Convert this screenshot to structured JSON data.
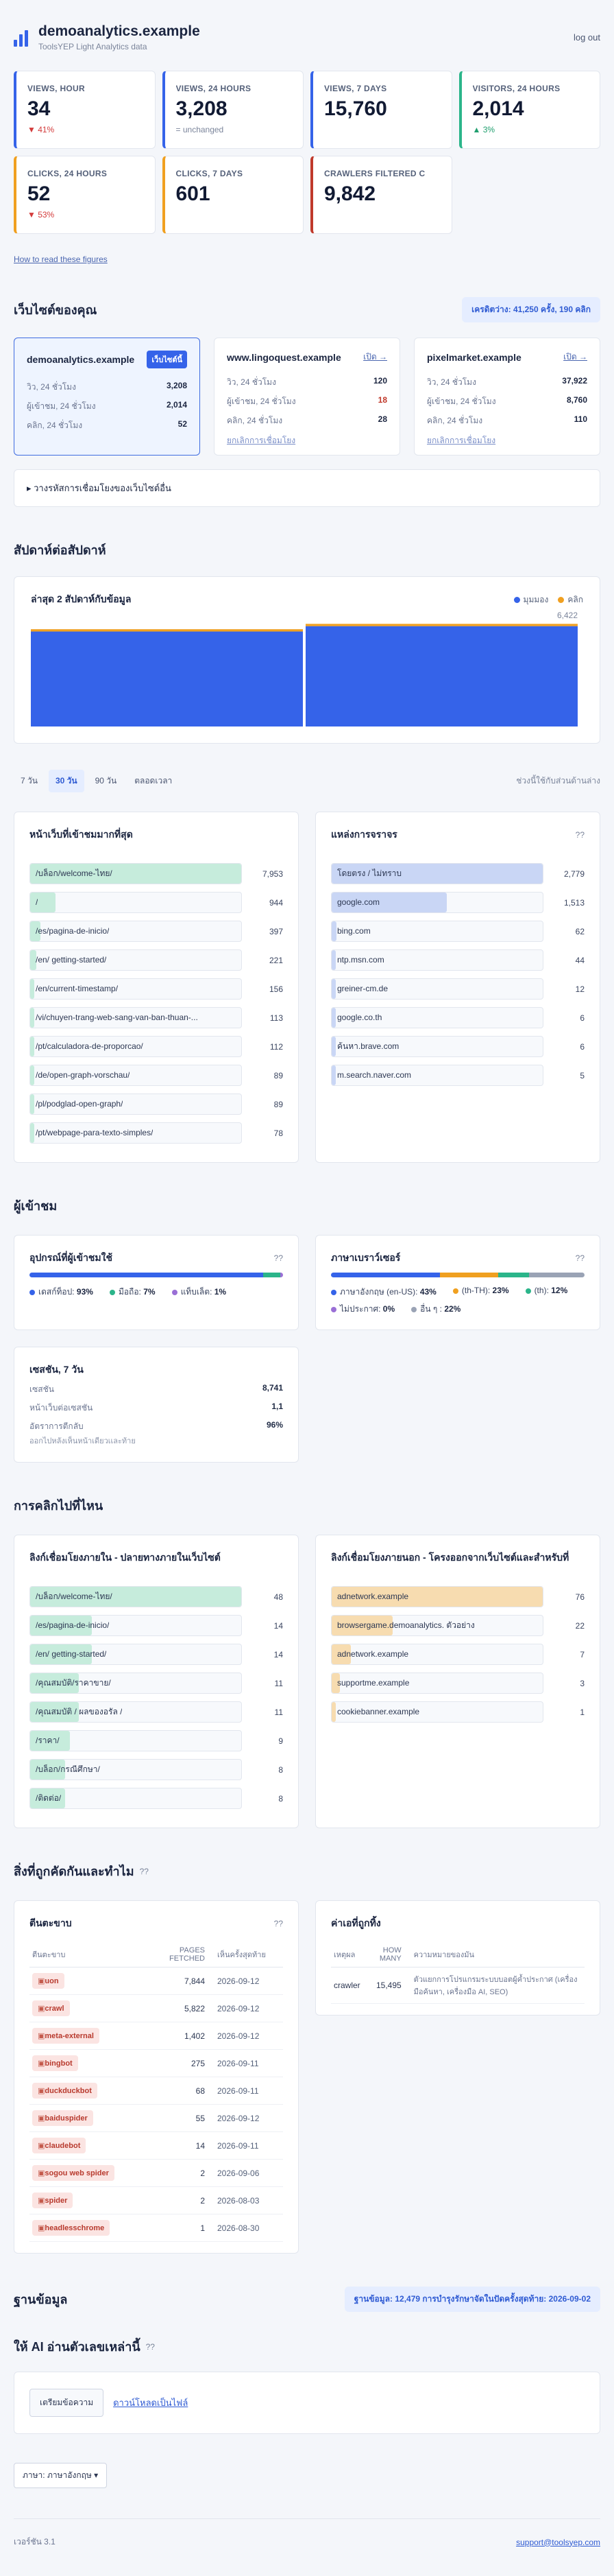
{
  "header": {
    "title": "demoanalytics.example",
    "subtitle": "ToolsYEP Light Analytics data",
    "logout": "log out"
  },
  "kpis": [
    {
      "label": "VIEWS, HOUR",
      "value": "34",
      "delta": "▼ 41%",
      "trend": "down",
      "color": "#3563e9"
    },
    {
      "label": "VIEWS, 24 HOURS",
      "value": "3,208",
      "delta": "= unchanged",
      "trend": "flat",
      "color": "#3563e9"
    },
    {
      "label": "VIEWS, 7 DAYS",
      "value": "15,760",
      "delta": "",
      "trend": "none",
      "color": "#3563e9"
    },
    {
      "label": "VISITORS, 24 HOURS",
      "value": "2,014",
      "delta": "▲ 3%",
      "trend": "up",
      "color": "#2bb58a"
    },
    {
      "label": "CLICKS, 24 HOURS",
      "value": "52",
      "delta": "▼ 53%",
      "trend": "down",
      "color": "#f0a020"
    },
    {
      "label": "CLICKS, 7 DAYS",
      "value": "601",
      "delta": "",
      "trend": "none",
      "color": "#f0a020"
    },
    {
      "label": "CRAWLERS FILTERED C",
      "value": "9,842",
      "delta": "",
      "trend": "none",
      "color": "#c0392b"
    }
  ],
  "how_link": "How to read these figures",
  "sites_section": {
    "title": "เว็บไซต์ของคุณ",
    "pill": "เครดิตว่าง: 41,250 ครั้ง, 190 คลิก",
    "sites": [
      {
        "name": "demoanalytics.example",
        "badge": "เว็บไซต์นี้",
        "active": true,
        "rows": [
          {
            "k": "วิว, 24 ชั่วโมง",
            "v": "3,208"
          },
          {
            "k": "ผู้เข้าชม, 24 ชั่วโมง",
            "v": "2,014"
          },
          {
            "k": "คลิก, 24 ชั่วโมง",
            "v": "52"
          }
        ]
      },
      {
        "name": "www.lingoquest.example",
        "open": "เปิด →",
        "active": false,
        "unlink": "ยกเลิกการเชื่อมโยง",
        "rows": [
          {
            "k": "วิว, 24 ชั่วโมง",
            "v": "120"
          },
          {
            "k": "ผู้เข้าชม, 24 ชั่วโมง",
            "v": "18"
          },
          {
            "k": "คลิก, 24 ชั่วโมง",
            "v": "28"
          }
        ]
      },
      {
        "name": "pixelmarket.example",
        "open": "เปิด →",
        "active": false,
        "unlink": "ยกเลิกการเชื่อมโยง",
        "rows": [
          {
            "k": "วิว, 24 ชั่วโมง",
            "v": "37,922"
          },
          {
            "k": "ผู้เข้าชม, 24 ชั่วโมง",
            "v": "8,760"
          },
          {
            "k": "คลิก, 24 ชั่วโมง",
            "v": "110"
          }
        ]
      }
    ],
    "connect": "▸ วางรหัสการเชื่อมโยงของเว็บไซต์อื่น"
  },
  "weekly": {
    "section_title": "สัปดาห์ต่อสัปดาห์",
    "card_title": "ล่าสุด 2 สัปดาห์กับข้อมูล",
    "legend_views": "มุมมอง",
    "legend_clicks": "คลิก",
    "peak_label": "6,422",
    "color_views": "#3563e9",
    "color_clicks": "#f0a020"
  },
  "chart_data": {
    "type": "bar",
    "categories": [
      "",
      ""
    ],
    "series": [
      {
        "name": "มุมมอง",
        "values": [
          5850,
          6180
        ]
      },
      {
        "name": "คลิก",
        "values": [
          240,
          242
        ]
      }
    ],
    "ylim": [
      0,
      6422
    ]
  },
  "range": {
    "tabs": [
      "7 วัน",
      "30 วัน",
      "90 วัน",
      "ตลอดเวลา"
    ],
    "active": 1,
    "note": "ช่วงนี้ใช้กับส่วนด้านล่าง"
  },
  "pages": {
    "title": "หน้าเว็บที่เข้าชมมากที่สุด",
    "items": [
      {
        "label": "/บล็อก/welcome-ไทย/",
        "value": 7953
      },
      {
        "label": "/",
        "value": 944
      },
      {
        "label": "/es/pagina-de-inicio/",
        "value": 397
      },
      {
        "label": "/en/ getting-started/",
        "value": 221
      },
      {
        "label": "/en/current-timestamp/",
        "value": 156
      },
      {
        "label": "/vi/chuyen-trang-web-sang-van-ban-thuan-...",
        "value": 113
      },
      {
        "label": "/pt/calculadora-de-proporcao/",
        "value": 112
      },
      {
        "label": "/de/open-graph-vorschau/",
        "value": 89
      },
      {
        "label": "/pl/podglad-open-graph/",
        "value": 89
      },
      {
        "label": "/pt/webpage-para-texto-simples/",
        "value": 78
      }
    ]
  },
  "sources": {
    "title": "แหล่งการจราจร",
    "help": "??",
    "items": [
      {
        "label": "โดยตรง / ไม่ทราบ",
        "value": 2779
      },
      {
        "label": "google.com",
        "value": 1513
      },
      {
        "label": "bing.com",
        "value": 62
      },
      {
        "label": "ntp.msn.com",
        "value": 44
      },
      {
        "label": "greiner-cm.de",
        "value": 12
      },
      {
        "label": "google.co.th",
        "value": 6
      },
      {
        "label": "ค้นหา.brave.com",
        "value": 6
      },
      {
        "label": "m.search.naver.com",
        "value": 5
      }
    ]
  },
  "visitors": {
    "section_title": "ผู้เข้าชม",
    "devices": {
      "title": "อุปกรณ์ที่ผู้เข้าชมใช้",
      "help": "??",
      "segments": [
        {
          "label": "เดสก์ท็อป:",
          "pct": 93,
          "display": "93%",
          "color": "#3563e9"
        },
        {
          "label": "มือถือ:",
          "pct": 7,
          "display": "7%",
          "color": "#2bb58a"
        },
        {
          "label": "แท็บเล็ต:",
          "pct": 1,
          "display": "1%",
          "color": "#9a6fd6"
        }
      ]
    },
    "languages": {
      "title": "ภาษาเบราว์เซอร์",
      "help": "??",
      "segments": [
        {
          "label": "ภาษาอังกฤษ (en-US):",
          "pct": 43,
          "display": "43%",
          "color": "#3563e9"
        },
        {
          "label": "(th-TH):",
          "pct": 23,
          "display": "23%",
          "color": "#f0a020"
        },
        {
          "label": "(th):",
          "pct": 12,
          "display": "12%",
          "color": "#2bb58a"
        },
        {
          "label": "ไม่ประกาศ:",
          "pct": 0,
          "display": "0%",
          "color": "#9a6fd6"
        },
        {
          "label": "อื่น ๆ :",
          "pct": 22,
          "display": "22%",
          "color": "#9aa3b5"
        }
      ]
    },
    "sessions": {
      "title": "เซสชัน, 7 วัน",
      "rows": [
        {
          "k": "เซสชัน",
          "v": "8,741"
        },
        {
          "k": "หน้าเว็บต่อเซสชัน",
          "v": "1,1"
        },
        {
          "k": "อัตราการตีกลับ",
          "v": "96%"
        }
      ],
      "note": "ออกไปหลังเห็นหน้าเดียวเเละท้าย"
    }
  },
  "clicks": {
    "section_title": "การคลิกไปที่ไหน",
    "internal": {
      "title": "ลิงก์เชื่อมโยงภายใน - ปลายทางภายในเว็บไซต์",
      "items": [
        {
          "label": "/บล็อก/welcome-ไทย/",
          "value": 48
        },
        {
          "label": "/es/pagina-de-inicio/",
          "value": 14
        },
        {
          "label": "/en/ getting-started/",
          "value": 14
        },
        {
          "label": "/คุณสมบัติ/ราคาขาย/",
          "value": 11
        },
        {
          "label": "/คุณสมบัติ / ผลของอรัล /",
          "value": 11
        },
        {
          "label": "/ราคา/",
          "value": 9
        },
        {
          "label": "/บล็อก/กรณีศึกษา/",
          "value": 8
        },
        {
          "label": "/ติดต่อ/",
          "value": 8
        }
      ]
    },
    "external": {
      "title": "ลิงก์เชื่อมโยงภายนอก - โครงออกจากเว็บไซต์และสำหรับที่",
      "items": [
        {
          "label": "adnetwork.example",
          "value": 76
        },
        {
          "label": "browsergame.demoanalytics. ตัวอย่าง",
          "value": 22
        },
        {
          "label": "adnetwork.example",
          "value": 7
        },
        {
          "label": "supportme.example",
          "value": 3
        },
        {
          "label": "cookiebanner.example",
          "value": 1
        }
      ]
    }
  },
  "bots": {
    "section_title": "สิ่งที่ถูกคัดกันและทำไม",
    "section_help": "??",
    "crawlers": {
      "title": "ตีนตะขาบ",
      "help": "??",
      "col_name": "ตีนตะขาบ",
      "col_pages": "PAGES FETCHED",
      "col_last": "เห็นครั้งสุดท้าย",
      "rows": [
        {
          "name": "uon",
          "pages": "7,844",
          "last": "2026-09-12"
        },
        {
          "name": "crawl",
          "pages": "5,822",
          "last": "2026-09-12"
        },
        {
          "name": "meta-external",
          "pages": "1,402",
          "last": "2026-09-12"
        },
        {
          "name": "bingbot",
          "pages": "275",
          "last": "2026-09-11"
        },
        {
          "name": "duckduckbot",
          "pages": "68",
          "last": "2026-09-11"
        },
        {
          "name": "baiduspider",
          "pages": "55",
          "last": "2026-09-12"
        },
        {
          "name": "claudebot",
          "pages": "14",
          "last": "2026-09-11"
        },
        {
          "name": "sogou web spider",
          "pages": "2",
          "last": "2026-09-06"
        },
        {
          "name": "spider",
          "pages": "2",
          "last": "2026-08-03"
        },
        {
          "name": "headlesschrome",
          "pages": "1",
          "last": "2026-08-30"
        }
      ]
    },
    "blocked": {
      "title": "ค่าเอที่ถูกทิ้ง",
      "col_reason": "เหตุผล",
      "col_count": "HOW MANY",
      "col_meaning": "ความหมายของมัน",
      "rows": [
        {
          "reason": "crawler",
          "count": "15,495",
          "meaning": "ตัวแยกการโปรแกรมระบบบอตผู้ค้ำประกาศ (เครื่องมือค้นหา, เครื่องมือ AI, SEO)"
        }
      ]
    }
  },
  "database": {
    "section_title": "ฐานข้อมูล",
    "pill": "ฐานข้อมูล: 12,479 การบำรุงรักษาจัดในปัดครั้งสุดท้าย: 2026-09-02"
  },
  "ai": {
    "section_title": "ให้ AI อ่านตัวเลขเหล่านี้",
    "help": "??",
    "button": "เตรียมข้อความ",
    "link": "ดาวน์โหลดเป็นไฟล์"
  },
  "language_button": "ภาษา: ภาษาอังกฤษ ▾",
  "footer": {
    "version": "เวอร์ชัน 3.1",
    "email": "support@toolsyep.com"
  }
}
